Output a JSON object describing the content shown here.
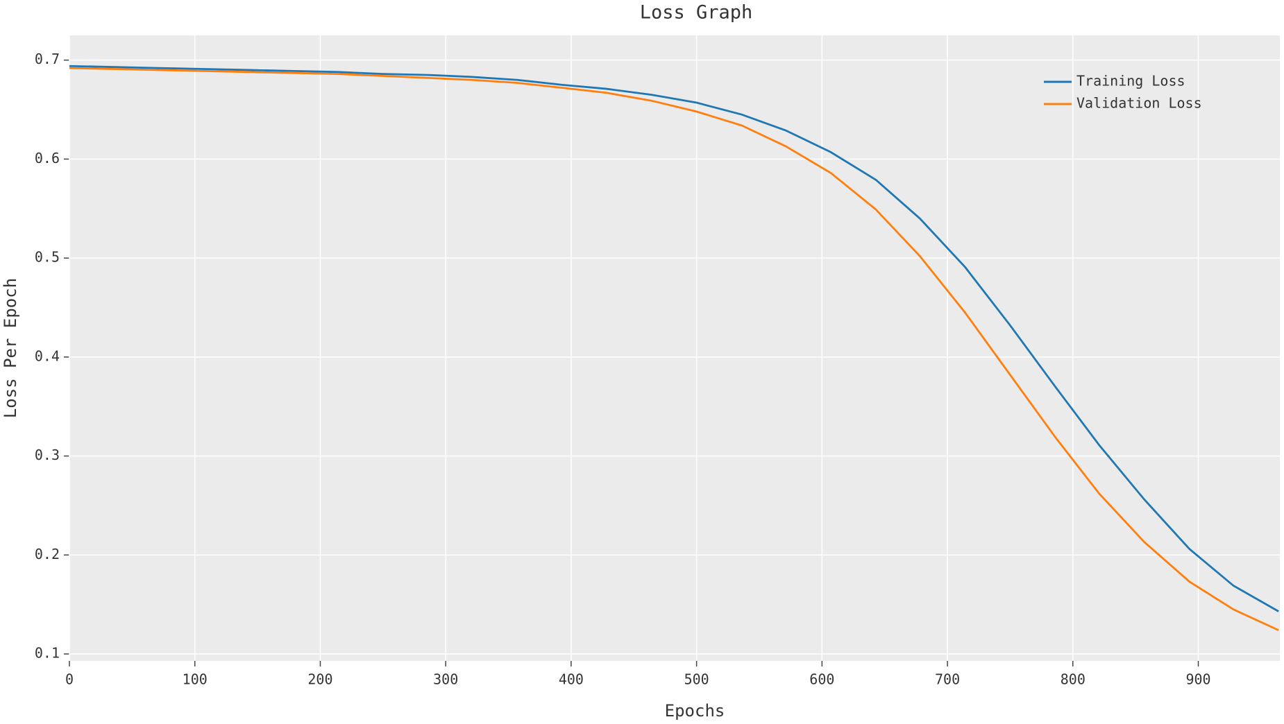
{
  "chart_data": {
    "type": "line",
    "title": "Loss Graph",
    "xlabel": "Epochs",
    "ylabel": "Loss Per Epoch",
    "x": [
      0,
      36,
      71,
      107,
      143,
      179,
      214,
      250,
      286,
      321,
      357,
      393,
      428,
      464,
      500,
      536,
      571,
      607,
      643,
      678,
      714,
      750,
      786,
      821,
      857,
      893,
      928,
      964
    ],
    "series": [
      {
        "name": "Training Loss",
        "color": "#1f77b4",
        "values": [
          0.694,
          0.693,
          0.692,
          0.691,
          0.69,
          0.689,
          0.688,
          0.686,
          0.685,
          0.683,
          0.68,
          0.675,
          0.671,
          0.665,
          0.657,
          0.645,
          0.629,
          0.607,
          0.579,
          0.54,
          0.491,
          0.432,
          0.37,
          0.311,
          0.256,
          0.206,
          0.169,
          0.143
        ]
      },
      {
        "name": "Validation Loss",
        "color": "#ff7f0e",
        "values": [
          0.692,
          0.691,
          0.69,
          0.689,
          0.688,
          0.687,
          0.686,
          0.684,
          0.682,
          0.68,
          0.677,
          0.672,
          0.667,
          0.659,
          0.648,
          0.634,
          0.613,
          0.586,
          0.549,
          0.502,
          0.445,
          0.382,
          0.319,
          0.262,
          0.213,
          0.173,
          0.145,
          0.124
        ]
      }
    ],
    "xlim": [
      0,
      965
    ],
    "ylim": [
      0.093,
      0.725
    ],
    "xticks": [
      0,
      100,
      200,
      300,
      400,
      500,
      600,
      700,
      800,
      900
    ],
    "yticks": [
      0.1,
      0.2,
      0.3,
      0.4,
      0.5,
      0.6,
      0.7
    ],
    "grid": true,
    "legend": "upper right"
  }
}
